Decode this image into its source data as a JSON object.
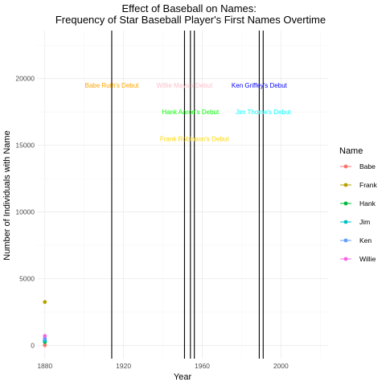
{
  "chart_data": {
    "type": "scatter",
    "title": "Effect of Baseball on Names:\nFrequency of Star Baseball Player's First Names Overtime",
    "xlabel": "Year",
    "ylabel": "Number of Individuals with Name",
    "xlim": [
      1876,
      2024
    ],
    "ylim": [
      -1000,
      23600
    ],
    "x_ticks": [
      1880,
      1920,
      1960,
      2000
    ],
    "y_ticks": [
      0,
      5000,
      10000,
      15000,
      20000
    ],
    "grid": true,
    "legend": {
      "title": "Name",
      "position": "right"
    },
    "series": [
      {
        "name": "Babe",
        "color": "#F8766D",
        "points": [
          [
            1880,
            5
          ]
        ]
      },
      {
        "name": "Frank",
        "color": "#B79F00",
        "points": [
          [
            1880,
            3250
          ]
        ]
      },
      {
        "name": "Hank",
        "color": "#00BA38",
        "points": [
          [
            1880,
            250
          ]
        ]
      },
      {
        "name": "Jim",
        "color": "#00BFC4",
        "points": [
          [
            1880,
            350
          ]
        ]
      },
      {
        "name": "Ken",
        "color": "#619CFF",
        "points": [
          [
            1880,
            500
          ]
        ]
      },
      {
        "name": "Willie",
        "color": "#F564E3",
        "points": [
          [
            1880,
            700
          ]
        ]
      }
    ],
    "vlines": [
      1914,
      1951,
      1954,
      1956,
      1989,
      1991
    ],
    "annotations": [
      {
        "text": "Babe Ruth's Debut",
        "x": 1914,
        "y": 19500,
        "color": "#FFA500"
      },
      {
        "text": "Willie Mays's Debut",
        "x": 1951,
        "y": 19500,
        "color": "#FFC0CB"
      },
      {
        "text": "Ken Griffey's Debut",
        "x": 1989,
        "y": 19500,
        "color": "#0000FF"
      },
      {
        "text": "Hank Aaron's Debut",
        "x": 1954,
        "y": 17500,
        "color": "#00FF00"
      },
      {
        "text": "Jim Thome's Debut",
        "x": 1991,
        "y": 17500,
        "color": "#00FFFF"
      },
      {
        "text": "Frank Robinson's Debut",
        "x": 1956,
        "y": 15500,
        "color": "#FFD700"
      }
    ]
  }
}
